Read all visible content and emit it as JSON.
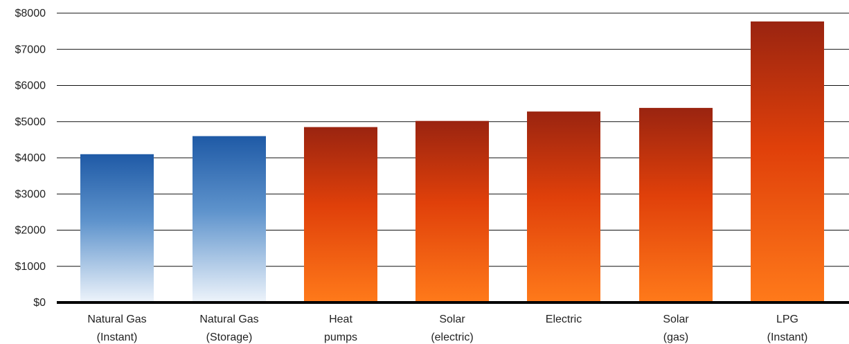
{
  "chart_data": {
    "type": "bar",
    "title": "",
    "xlabel": "",
    "ylabel": "",
    "ylim": [
      0,
      8000
    ],
    "y_ticks": [
      "$0",
      "$1000",
      "$2000",
      "$3000",
      "$4000",
      "$5000",
      "$6000",
      "$7000",
      "$8000"
    ],
    "y_tick_values": [
      0,
      1000,
      2000,
      3000,
      4000,
      5000,
      6000,
      7000,
      8000
    ],
    "grid": true,
    "legend": "none",
    "categories": [
      [
        "Natural Gas",
        "(Instant)"
      ],
      [
        "Natural Gas",
        "(Storage)"
      ],
      [
        "Heat",
        "pumps"
      ],
      [
        "Solar",
        "(electric)"
      ],
      [
        "Electric",
        ""
      ],
      [
        "Solar",
        "(gas)"
      ],
      [
        "LPG",
        "(Instant)"
      ]
    ],
    "values": [
      4100,
      4600,
      4850,
      5020,
      5280,
      5380,
      7770
    ],
    "bar_colors": [
      "blue",
      "blue",
      "orange",
      "orange",
      "orange",
      "orange",
      "orange"
    ],
    "colors": {
      "blue_top": "#1f5aa6",
      "blue_bottom": "#eef4fb",
      "orange_top": "#9a2410",
      "orange_mid": "#e0400a",
      "orange_bottom": "#ff7a1a",
      "gridline": "#111111",
      "baseline": "#000000"
    }
  }
}
